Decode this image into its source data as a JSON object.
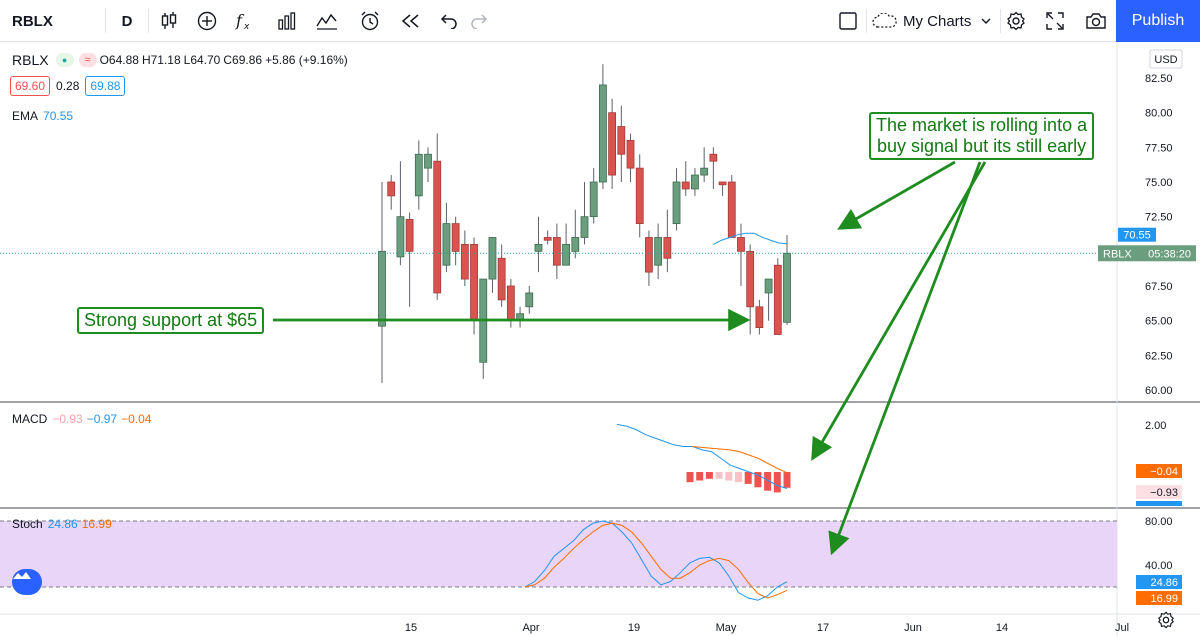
{
  "toolbar": {
    "symbol": "RBLX",
    "interval": "D",
    "my_charts": "My Charts",
    "publish": "Publish",
    "icons": [
      "candles-icon",
      "add-indicator-icon",
      "fx-icon",
      "bar-chart-icon",
      "compare-icon",
      "alert-clock-icon",
      "replay-icon",
      "undo-icon",
      "redo-icon",
      "layout-icon",
      "cloud-icon",
      "chevron-down-icon",
      "settings-icon",
      "fullscreen-icon",
      "camera-icon"
    ]
  },
  "legend": {
    "symbol": "RBLX",
    "open": "O64.88",
    "high": "H71.18",
    "low": "L64.70",
    "close": "C69.86",
    "change": "+5.86 (+9.16%)",
    "bid": "69.60",
    "spread": "0.28",
    "ask": "69.88",
    "ema_label": "EMA",
    "ema_value": "70.55"
  },
  "macd": {
    "label": "MACD",
    "hist": "−0.93",
    "macd": "−0.97",
    "signal": "−0.04"
  },
  "stoch": {
    "label": "Stoch",
    "k": "24.86",
    "d": "16.99"
  },
  "price_axis": {
    "currency": "USD",
    "ticks": [
      "82.50",
      "80.00",
      "77.50",
      "75.00",
      "72.50",
      "70.00",
      "67.50",
      "65.00",
      "62.50",
      "60.00"
    ],
    "badges": {
      "ema": "70.55",
      "symbol": "RBLX",
      "countdown": "05:38:20",
      "macd_signal": "−0.04",
      "macd_hist": "−0.93",
      "stoch_k": "24.86",
      "stoch_d": "16.99"
    },
    "macd_ticks": [
      "2.00"
    ],
    "stoch_ticks": [
      "80.00",
      "40.00"
    ]
  },
  "time_axis": {
    "labels": [
      "15",
      "Apr",
      "19",
      "May",
      "17",
      "Jun",
      "14",
      "Jul"
    ]
  },
  "annotations": {
    "support": "Strong support at $65",
    "signal_line1": "The market is rolling into a",
    "signal_line2": "buy signal but its still early"
  },
  "colors": {
    "up": "#26a69a",
    "down": "#ef5350",
    "up_fill": "#6b9e7e",
    "down_fill": "#d9534f",
    "ema": "#2196f3",
    "macd_line": "#2196f3",
    "signal_line": "#ff6d00",
    "stoch_k": "#2196f3",
    "stoch_d": "#ff6d00",
    "stoch_band": "#e9d5f7",
    "annotation": "#1e8c1e",
    "accent": "#2962ff"
  },
  "chart_data": {
    "type": "candlestick",
    "ylim": [
      59.5,
      84.0
    ],
    "y_ticks": [
      60,
      62.5,
      65,
      67.5,
      70,
      72.5,
      75,
      77.5,
      80,
      82.5
    ],
    "candles": [
      {
        "o": 64.6,
        "h": 75.0,
        "l": 60.5,
        "c": 70.0
      },
      {
        "o": 75.0,
        "h": 75.5,
        "l": 73.0,
        "c": 74.0
      },
      {
        "o": 69.6,
        "h": 76.5,
        "l": 69.0,
        "c": 72.5
      },
      {
        "o": 72.3,
        "h": 72.8,
        "l": 66.0,
        "c": 70.0
      },
      {
        "o": 74.0,
        "h": 78.0,
        "l": 73.0,
        "c": 77.0
      },
      {
        "o": 76.0,
        "h": 77.5,
        "l": 75.0,
        "c": 77.0
      },
      {
        "o": 76.5,
        "h": 78.5,
        "l": 66.5,
        "c": 67.0
      },
      {
        "o": 69.0,
        "h": 73.5,
        "l": 68.5,
        "c": 72.0
      },
      {
        "o": 72.0,
        "h": 72.5,
        "l": 69.0,
        "c": 70.0
      },
      {
        "o": 70.5,
        "h": 71.5,
        "l": 67.5,
        "c": 68.0
      },
      {
        "o": 70.5,
        "h": 71.0,
        "l": 64.0,
        "c": 65.0
      },
      {
        "o": 62.0,
        "h": 68.0,
        "l": 60.8,
        "c": 68.0
      },
      {
        "o": 68.0,
        "h": 71.0,
        "l": 67.0,
        "c": 71.0
      },
      {
        "o": 69.5,
        "h": 70.5,
        "l": 66.0,
        "c": 66.5
      },
      {
        "o": 67.5,
        "h": 68.0,
        "l": 64.5,
        "c": 65.0
      },
      {
        "o": 65.0,
        "h": 66.0,
        "l": 64.5,
        "c": 65.5
      },
      {
        "o": 66.0,
        "h": 67.5,
        "l": 65.5,
        "c": 67.0
      },
      {
        "o": 70.0,
        "h": 72.5,
        "l": 68.5,
        "c": 70.5
      },
      {
        "o": 71.0,
        "h": 71.5,
        "l": 70.5,
        "c": 70.8
      },
      {
        "o": 71.0,
        "h": 72.0,
        "l": 68.0,
        "c": 69.0
      },
      {
        "o": 69.0,
        "h": 72.0,
        "l": 69.0,
        "c": 70.5
      },
      {
        "o": 70.0,
        "h": 73.0,
        "l": 69.5,
        "c": 71.0
      },
      {
        "o": 71.0,
        "h": 75.0,
        "l": 70.5,
        "c": 72.5
      },
      {
        "o": 72.5,
        "h": 76.0,
        "l": 72.0,
        "c": 75.0
      },
      {
        "o": 75.0,
        "h": 83.5,
        "l": 74.5,
        "c": 82.0
      },
      {
        "o": 80.0,
        "h": 81.0,
        "l": 74.5,
        "c": 75.5
      },
      {
        "o": 79.0,
        "h": 80.5,
        "l": 75.0,
        "c": 77.0
      },
      {
        "o": 78.0,
        "h": 78.5,
        "l": 75.0,
        "c": 76.0
      },
      {
        "o": 76.0,
        "h": 77.0,
        "l": 71.0,
        "c": 72.0
      },
      {
        "o": 71.0,
        "h": 71.5,
        "l": 67.5,
        "c": 68.5
      },
      {
        "o": 69.0,
        "h": 72.0,
        "l": 68.0,
        "c": 71.0
      },
      {
        "o": 71.0,
        "h": 73.0,
        "l": 68.5,
        "c": 69.5
      },
      {
        "o": 72.0,
        "h": 76.0,
        "l": 71.5,
        "c": 75.0
      },
      {
        "o": 75.0,
        "h": 76.5,
        "l": 74.0,
        "c": 74.5
      },
      {
        "o": 74.5,
        "h": 76.0,
        "l": 74.0,
        "c": 75.5
      },
      {
        "o": 75.5,
        "h": 77.5,
        "l": 75.0,
        "c": 76.0
      },
      {
        "o": 77.0,
        "h": 77.5,
        "l": 74.5,
        "c": 76.5
      },
      {
        "o": 75.0,
        "h": 75.0,
        "l": 74.0,
        "c": 74.8
      },
      {
        "o": 75.0,
        "h": 75.5,
        "l": 71.0,
        "c": 71.0
      },
      {
        "o": 71.0,
        "h": 72.0,
        "l": 67.5,
        "c": 70.0
      },
      {
        "o": 70.0,
        "h": 70.5,
        "l": 64.0,
        "c": 66.0
      },
      {
        "o": 66.0,
        "h": 66.5,
        "l": 64.0,
        "c": 64.5
      },
      {
        "o": 67.0,
        "h": 68.0,
        "l": 65.0,
        "c": 68.0
      },
      {
        "o": 69.0,
        "h": 69.5,
        "l": 64.0,
        "c": 64.0
      },
      {
        "o": 64.88,
        "h": 71.18,
        "l": 64.7,
        "c": 69.86
      }
    ],
    "ema": [
      70.5,
      70.8,
      71.0,
      71.2,
      71.3,
      71.3,
      71.0,
      70.8,
      70.6,
      70.55
    ],
    "macd": {
      "macd_line": [
        2.8,
        2.7,
        2.5,
        2.2,
        2.0,
        1.8,
        1.6,
        1.5,
        1.5,
        1.3,
        1.2,
        0.8,
        0.4,
        0.2,
        0.0,
        -0.2,
        -0.5,
        -0.8,
        -0.97
      ],
      "signal_line": [
        1.5,
        1.45,
        1.4,
        1.35,
        1.3,
        1.2,
        1.0,
        0.8,
        0.5,
        0.2,
        -0.04
      ],
      "histogram": [
        -0.6,
        -0.5,
        -0.4,
        -0.4,
        -0.5,
        -0.6,
        -0.7,
        -0.9,
        -1.1,
        -1.2,
        -0.93
      ]
    },
    "stoch": {
      "k": [
        20,
        25,
        35,
        48,
        55,
        62,
        72,
        78,
        80,
        78,
        70,
        60,
        45,
        30,
        22,
        25,
        33,
        42,
        46,
        47,
        42,
        30,
        15,
        10,
        8,
        12,
        20,
        24.86
      ],
      "d": [
        20,
        22,
        28,
        38,
        46,
        55,
        63,
        70,
        76,
        78,
        76,
        70,
        60,
        48,
        36,
        28,
        28,
        33,
        40,
        44,
        46,
        44,
        36,
        24,
        14,
        10,
        13,
        16.99
      ],
      "upper": 80,
      "lower": 20
    }
  }
}
